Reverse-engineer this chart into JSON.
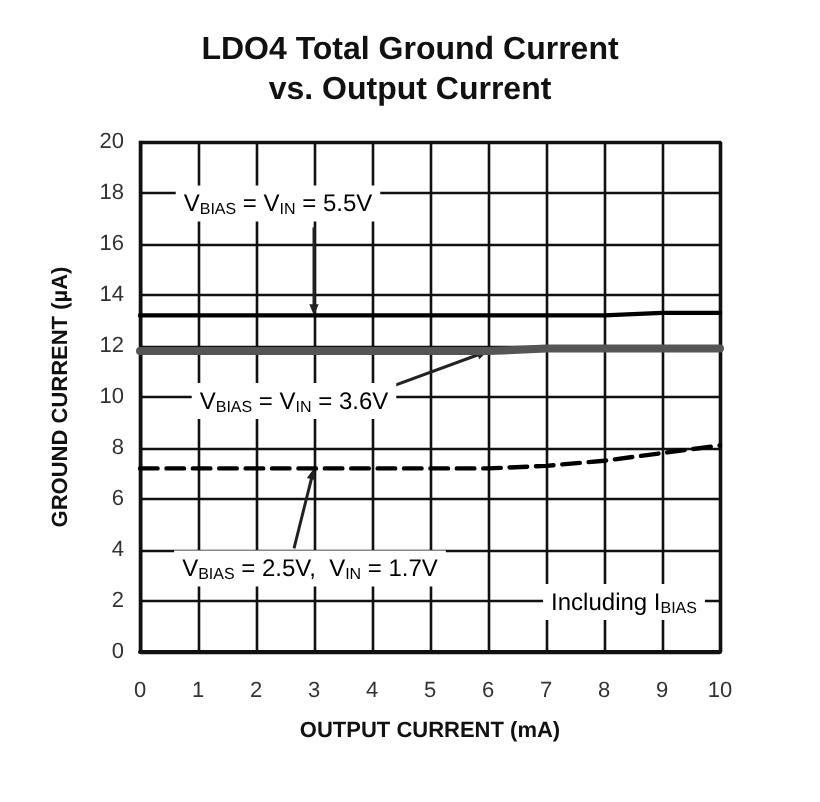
{
  "chart_data": {
    "type": "line",
    "title": "LDO4 Total Ground Current\nvs. Output Current",
    "xlabel": "OUTPUT CURRENT (mA)",
    "ylabel": "GROUND CURRENT (µA)",
    "x": [
      0,
      1,
      2,
      3,
      4,
      5,
      6,
      7,
      8,
      9,
      10
    ],
    "series": [
      {
        "name": "V$_{BIAS}$ = V$_{IN}$ = 5.5V",
        "color": "#000000",
        "line_style": "solid",
        "values": [
          13.2,
          13.2,
          13.2,
          13.2,
          13.2,
          13.2,
          13.2,
          13.2,
          13.2,
          13.3,
          13.3
        ]
      },
      {
        "name": "V$_{BIAS}$ = V$_{IN}$ = 3.6V",
        "color": "#555555",
        "line_style": "solid",
        "values": [
          11.8,
          11.8,
          11.8,
          11.8,
          11.8,
          11.8,
          11.8,
          11.9,
          11.9,
          11.9,
          11.9
        ]
      },
      {
        "name": "V$_{BIAS}$ = 2.5V,  V$_{IN}$ = 1.7V",
        "color": "#000000",
        "line_style": "dashed",
        "values": [
          7.2,
          7.2,
          7.2,
          7.2,
          7.2,
          7.2,
          7.2,
          7.3,
          7.5,
          7.8,
          8.1
        ]
      }
    ],
    "annotations": [
      "Including I$_{BIAS}$"
    ],
    "xlim": [
      0,
      10
    ],
    "xticks": [
      0,
      1,
      2,
      3,
      4,
      5,
      6,
      7,
      8,
      9,
      10
    ],
    "ylim": [
      0,
      20
    ],
    "yticks": [
      0,
      2,
      4,
      6,
      8,
      10,
      12,
      14,
      16,
      18,
      20
    ],
    "grid": true,
    "legend": false,
    "marker": "none"
  }
}
